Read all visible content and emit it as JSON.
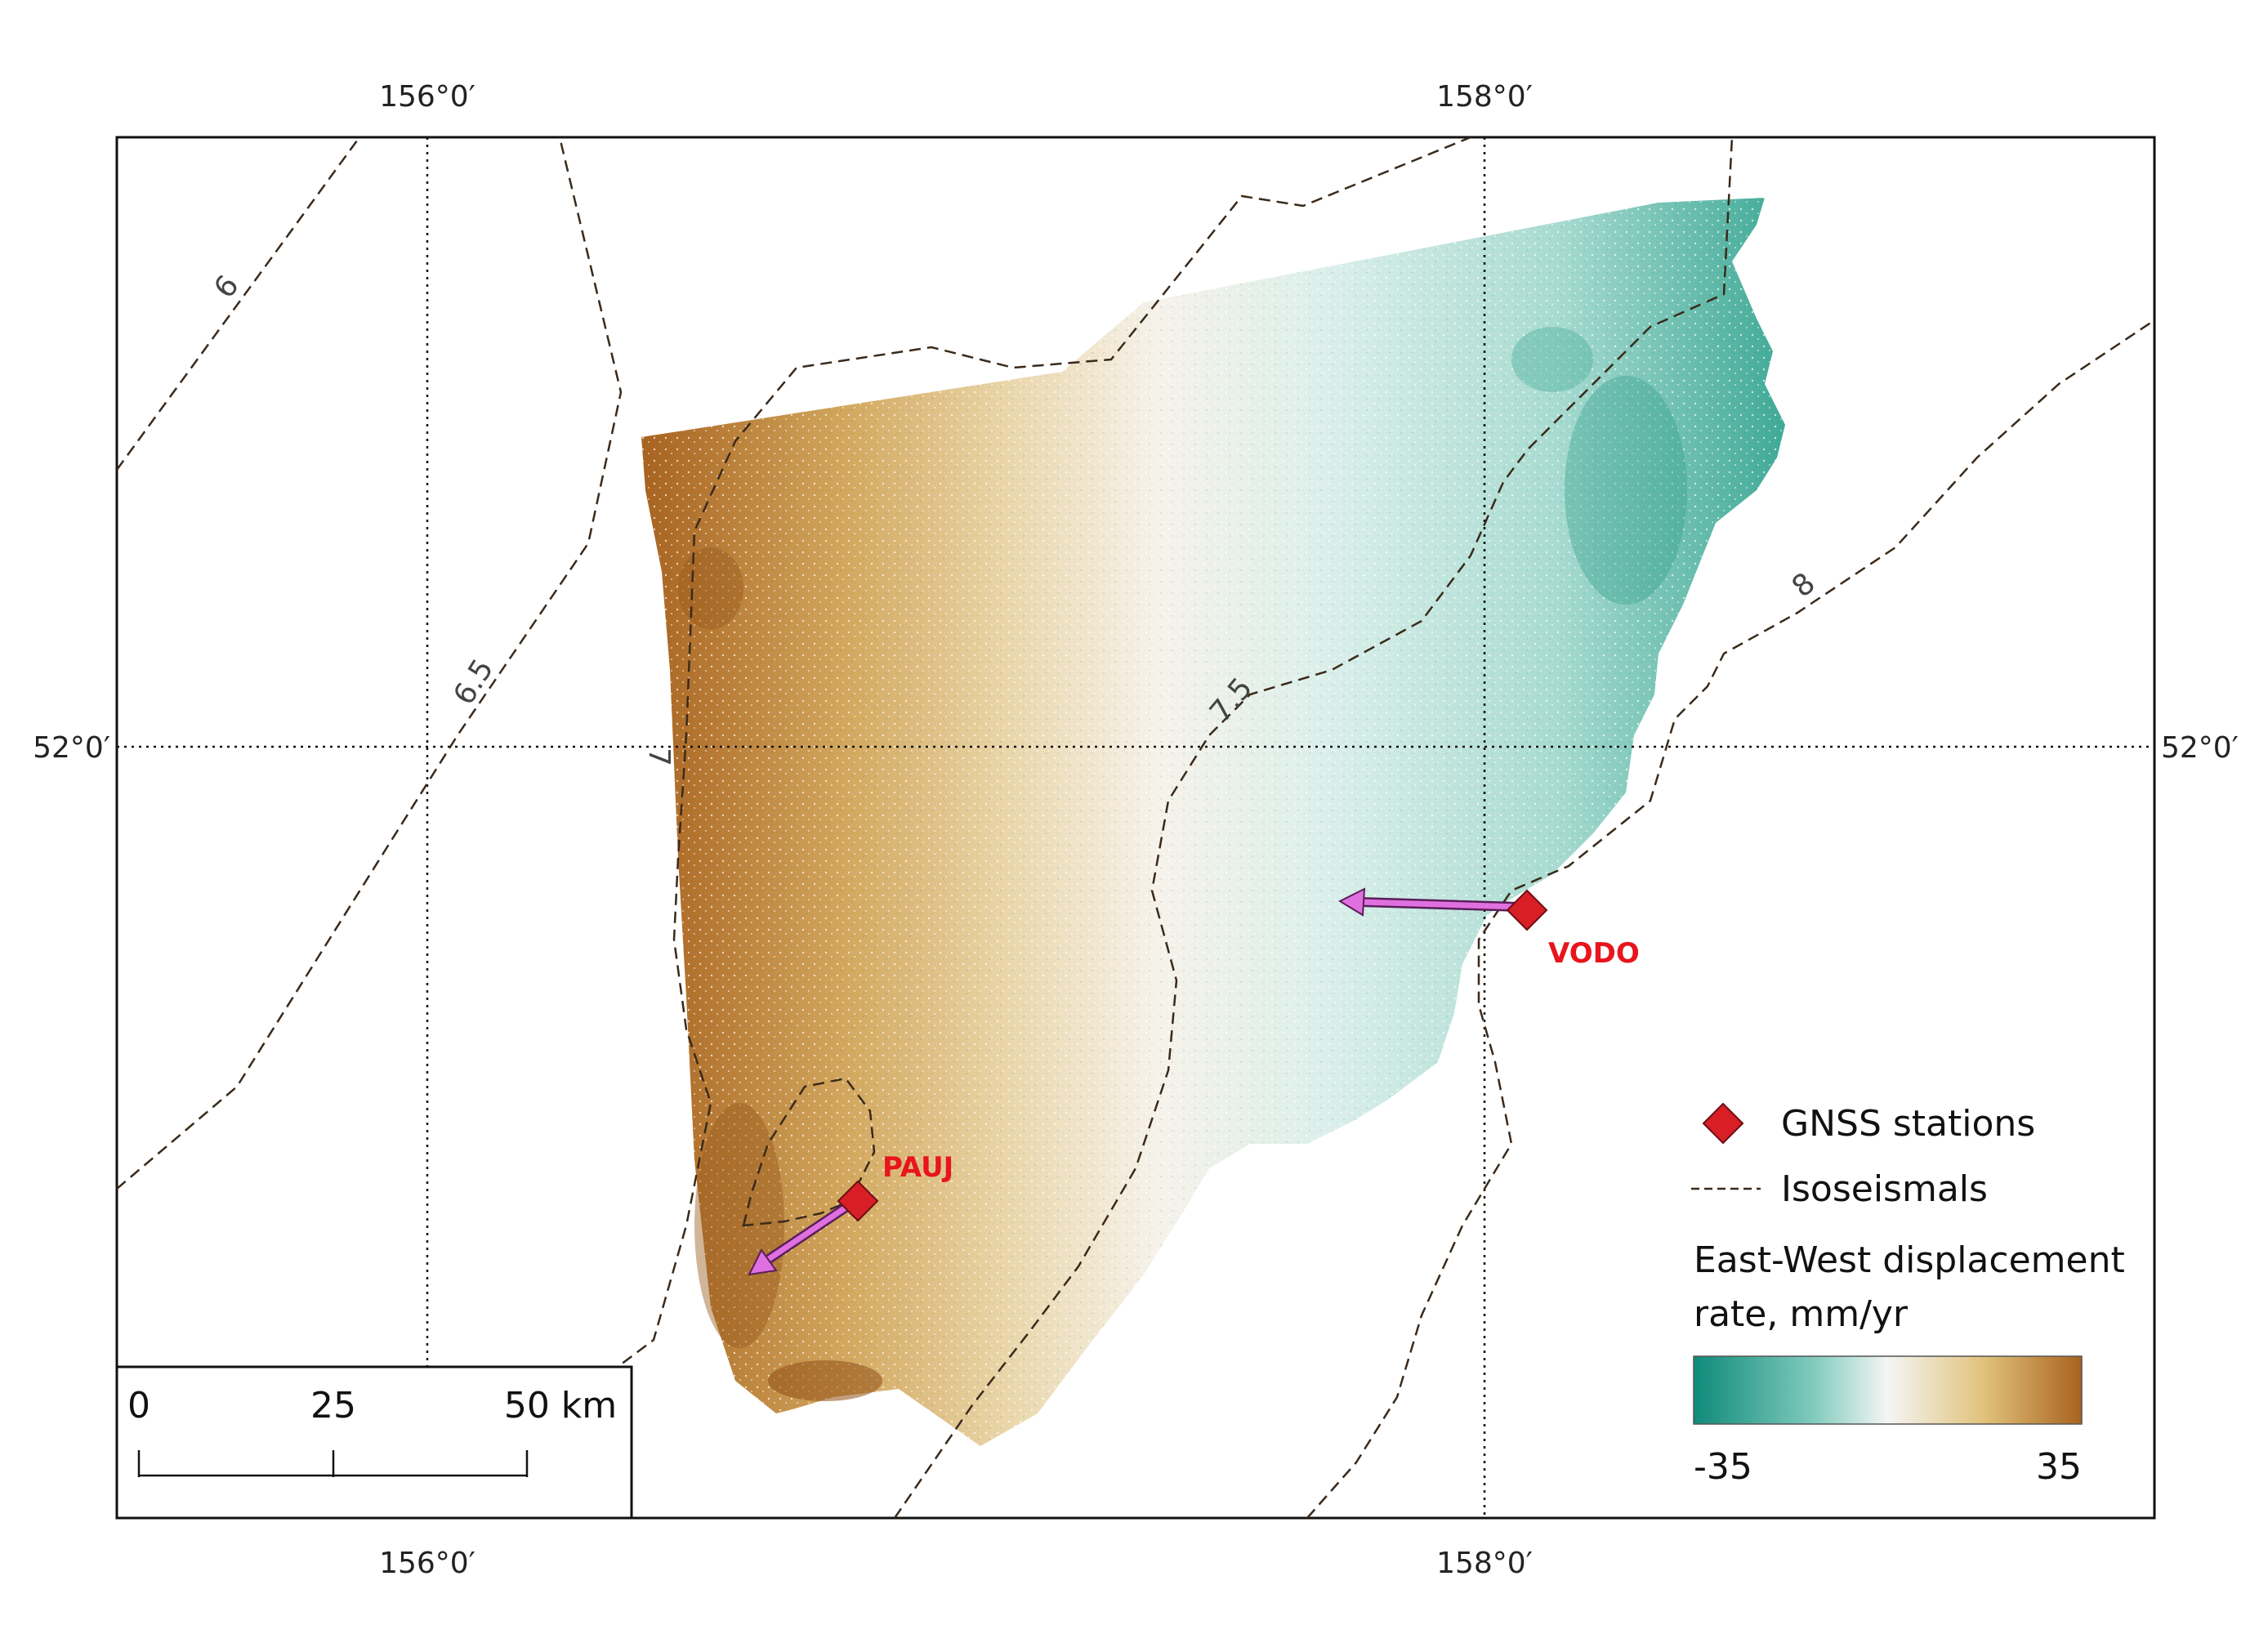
{
  "graticule": {
    "lon_labels": [
      "156°0′",
      "158°0′"
    ],
    "lat_labels": [
      "52°0′"
    ]
  },
  "isoseismals": {
    "labels": [
      "6",
      "6.5",
      "7",
      "7.5",
      "8"
    ]
  },
  "stations": [
    {
      "name": "PAUJ",
      "displacement": "westward-southwest"
    },
    {
      "name": "VODO",
      "displacement": "westward"
    }
  ],
  "legend": {
    "stations_label": "GNSS stations",
    "isoseismals_label": "Isoseismals",
    "raster_title_line1": "East-West displacement",
    "raster_title_line2": "rate, mm/yr",
    "raster_min": "-35",
    "raster_max": "35",
    "colors": {
      "min": "#0f8a7a",
      "mid": "#f5f5f5",
      "tan": "#e0c27a",
      "max": "#a8621f"
    }
  },
  "scale_bar": {
    "ticks": [
      "0",
      "25",
      "50 km"
    ]
  },
  "colors": {
    "station": "#d81f26",
    "arrow": "#e070e0",
    "isoseismal": "#3a2a1a"
  }
}
